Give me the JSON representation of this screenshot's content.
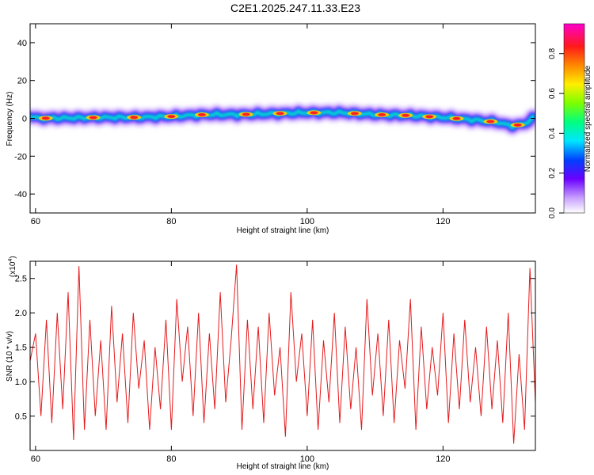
{
  "title": "C2E1.2025.247.11.33.E23",
  "chart_data": [
    {
      "type": "heatmap",
      "xlabel": "Height of straight line (km)",
      "ylabel": "Frequency (Hz)",
      "xlim": [
        59.2,
        133.6
      ],
      "ylim": [
        -50,
        50
      ],
      "x_ticks": [
        "60",
        "80",
        "100",
        "120"
      ],
      "y_ticks": [
        "40",
        "20",
        "0",
        "-20",
        "-40"
      ],
      "colorbar": {
        "label": "Normalized spectral amplitude",
        "range": [
          0.0,
          0.95
        ],
        "ticks": [
          "0.0",
          "0.2",
          "0.4",
          "0.6",
          "0.8"
        ]
      },
      "ridge": {
        "x": [
          60,
          65,
          70,
          75,
          80,
          85,
          90,
          95,
          100,
          105,
          110,
          115,
          120,
          125,
          128,
          130,
          132,
          133.6
        ],
        "y": [
          0,
          0.2,
          0.5,
          0.5,
          1,
          2,
          2,
          2.5,
          3,
          3,
          2,
          1.5,
          0.5,
          -1,
          -2,
          -4,
          -3,
          1
        ]
      },
      "hotspots_x": [
        61.5,
        68.5,
        74.5,
        80,
        84.5,
        91,
        96,
        101,
        107,
        111,
        114.5,
        118,
        122,
        127,
        131
      ]
    },
    {
      "type": "line",
      "xlabel": "Height of straight line (km)",
      "ylabel": "SNR (10 * v/v)",
      "scale_label": "(x10",
      "scale_exponent": "4",
      "scale_suffix": ")",
      "xlim": [
        59.2,
        133.6
      ],
      "ylim": [
        0,
        2.75
      ],
      "x_ticks": [
        "60",
        "80",
        "100",
        "120"
      ],
      "y_ticks": [
        "2.5",
        "2.0",
        "1.5",
        "1.0",
        "0.5"
      ],
      "series": [
        {
          "name": "SNR",
          "color": "#e41a1c",
          "x": [
            59.2,
            60.0,
            60.8,
            61.6,
            62.4,
            63.2,
            64.0,
            64.8,
            65.6,
            66.4,
            67.2,
            68.0,
            68.8,
            69.6,
            70.4,
            71.2,
            72.0,
            72.8,
            73.6,
            74.4,
            75.2,
            76.0,
            76.8,
            77.6,
            78.4,
            79.2,
            80.0,
            80.8,
            81.6,
            82.4,
            83.2,
            84.0,
            84.8,
            85.6,
            86.4,
            87.2,
            88.0,
            88.8,
            89.6,
            90.4,
            91.2,
            92.0,
            92.8,
            93.6,
            94.4,
            95.2,
            96.0,
            96.8,
            97.6,
            98.4,
            99.2,
            100.0,
            100.8,
            101.6,
            102.4,
            103.2,
            104.0,
            104.8,
            105.6,
            106.4,
            107.2,
            108.0,
            108.8,
            109.6,
            110.4,
            111.2,
            112.0,
            112.8,
            113.6,
            114.4,
            115.2,
            116.0,
            116.8,
            117.6,
            118.4,
            119.2,
            120.0,
            120.8,
            121.6,
            122.4,
            123.2,
            124.0,
            124.8,
            125.6,
            126.4,
            127.2,
            128.0,
            128.8,
            129.6,
            130.4,
            131.2,
            132.0,
            132.8,
            133.6
          ],
          "values": [
            1.3,
            1.7,
            0.5,
            1.9,
            0.4,
            2.0,
            0.6,
            2.3,
            0.15,
            2.68,
            0.3,
            1.9,
            0.5,
            1.6,
            0.3,
            2.1,
            0.7,
            1.7,
            0.4,
            2.0,
            0.9,
            1.6,
            0.3,
            1.5,
            0.6,
            1.9,
            0.3,
            2.2,
            1.0,
            1.8,
            0.5,
            2.0,
            0.4,
            1.7,
            0.6,
            2.3,
            0.7,
            1.6,
            2.7,
            0.3,
            1.9,
            0.6,
            1.8,
            0.4,
            2.0,
            0.8,
            1.5,
            0.2,
            2.3,
            1.0,
            1.7,
            0.5,
            1.9,
            0.3,
            1.6,
            0.7,
            2.0,
            0.4,
            1.8,
            0.6,
            1.5,
            0.3,
            2.2,
            0.8,
            1.7,
            0.5,
            1.9,
            0.4,
            1.6,
            0.9,
            2.2,
            0.3,
            1.8,
            0.6,
            1.5,
            0.8,
            2.0,
            0.4,
            1.7,
            0.6,
            1.9,
            0.7,
            1.5,
            0.5,
            1.8,
            0.6,
            1.6,
            0.4,
            2.0,
            0.1,
            1.4,
            0.3,
            2.65,
            0.7
          ]
        }
      ]
    }
  ]
}
